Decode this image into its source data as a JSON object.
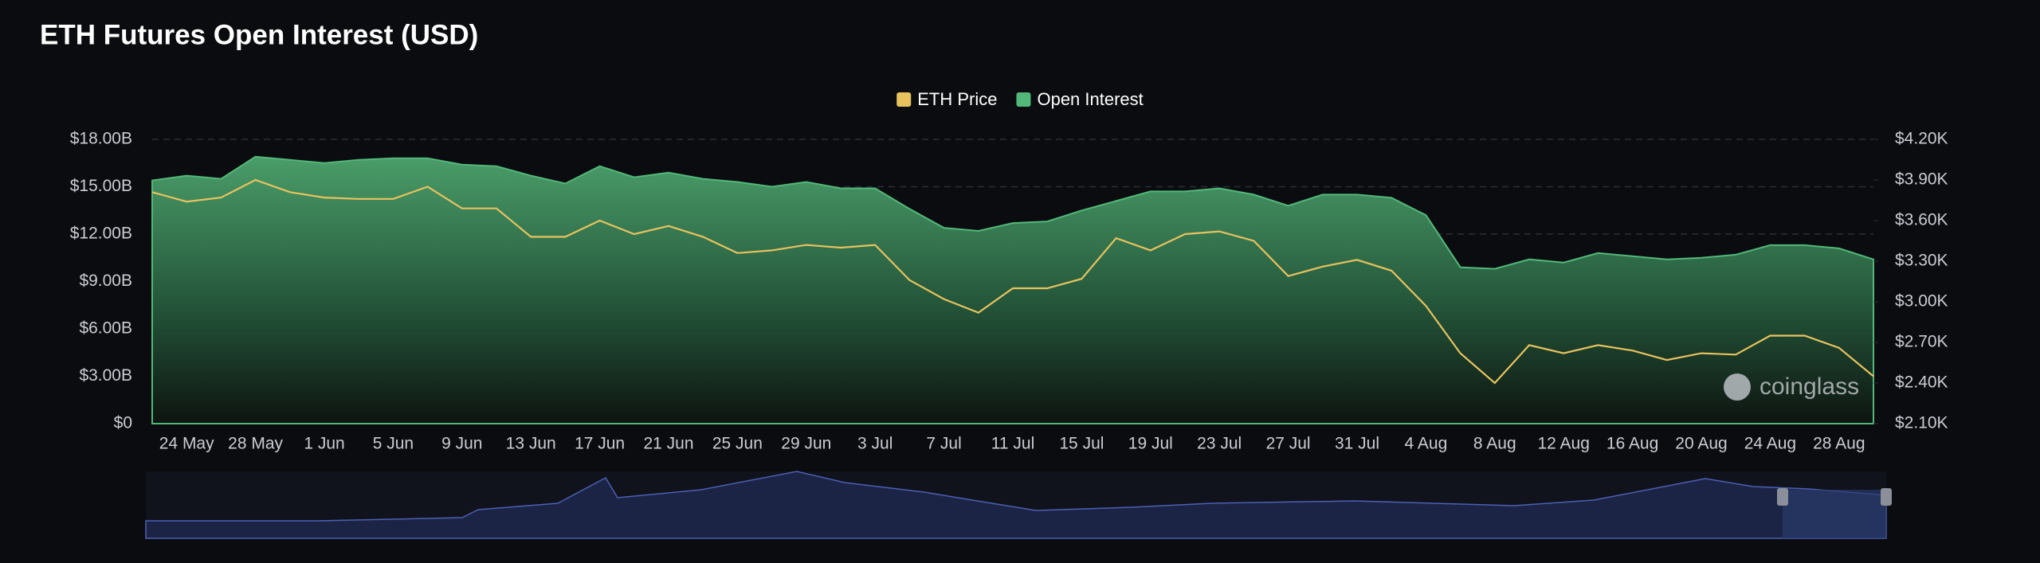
{
  "chart_data": {
    "type": "area-line",
    "title": "ETH Futures Open Interest (USD)",
    "watermark": "coinglass",
    "categories": [
      null,
      "24 May",
      null,
      "28 May",
      null,
      "1 Jun",
      null,
      "5 Jun",
      null,
      "9 Jun",
      null,
      "13 Jun",
      null,
      "17 Jun",
      null,
      "21 Jun",
      null,
      "25 Jun",
      null,
      "29 Jun",
      null,
      "3 Jul",
      null,
      "7 Jul",
      null,
      "11 Jul",
      null,
      "15 Jul",
      null,
      "19 Jul",
      null,
      "23 Jul",
      null,
      "27 Jul",
      null,
      "31 Jul",
      null,
      "4 Aug",
      null,
      "8 Aug",
      null,
      "12 Aug",
      null,
      "16 Aug",
      null,
      "20 Aug",
      null,
      "24 Aug",
      null,
      "28 Aug",
      null
    ],
    "series": [
      {
        "name": "ETH Price",
        "color": "#e6c25f",
        "axis": "y2",
        "values": [
          3810,
          3740,
          3770,
          3900,
          3810,
          3770,
          3760,
          3760,
          3850,
          3690,
          3690,
          3480,
          3480,
          3600,
          3500,
          3560,
          3480,
          3360,
          3380,
          3420,
          3400,
          3420,
          3160,
          3020,
          2920,
          3100,
          3100,
          3170,
          3470,
          3380,
          3500,
          3520,
          3450,
          3190,
          3260,
          3310,
          3230,
          2970,
          2620,
          2400,
          2680,
          2620,
          2680,
          2640,
          2570,
          2620,
          2610,
          2750,
          2750,
          2660,
          2450
        ]
      },
      {
        "name": "Open Interest",
        "color": "#52b87a",
        "axis": "y",
        "values": [
          15.4,
          15.7,
          15.5,
          16.9,
          16.7,
          16.5,
          16.7,
          16.8,
          16.8,
          16.4,
          16.3,
          15.7,
          15.2,
          16.3,
          15.6,
          15.9,
          15.5,
          15.3,
          15.0,
          15.3,
          14.9,
          14.9,
          13.6,
          12.4,
          12.2,
          12.7,
          12.8,
          13.5,
          14.1,
          14.7,
          14.7,
          14.9,
          14.5,
          13.8,
          14.5,
          14.5,
          14.3,
          13.2,
          9.9,
          9.8,
          10.4,
          10.2,
          10.8,
          10.6,
          10.4,
          10.5,
          10.7,
          11.3,
          11.3,
          11.1,
          10.4
        ]
      }
    ],
    "ylim": [
      0,
      18
    ],
    "yticks": [
      {
        "value": 0,
        "label": "$0"
      },
      {
        "value": 3,
        "label": "$3.00B"
      },
      {
        "value": 6,
        "label": "$6.00B"
      },
      {
        "value": 9,
        "label": "$9.00B"
      },
      {
        "value": 12,
        "label": "$12.00B"
      },
      {
        "value": 15,
        "label": "$15.00B"
      },
      {
        "value": 18,
        "label": "$18.00B"
      }
    ],
    "y2lim": [
      2100,
      4200
    ],
    "y2ticks": [
      {
        "value": 2100,
        "label": "$2.10K"
      },
      {
        "value": 2400,
        "label": "$2.40K"
      },
      {
        "value": 2700,
        "label": "$2.70K"
      },
      {
        "value": 3000,
        "label": "$3.00K"
      },
      {
        "value": 3300,
        "label": "$3.30K"
      },
      {
        "value": 3600,
        "label": "$3.60K"
      },
      {
        "value": 3900,
        "label": "$3.90K"
      },
      {
        "value": 4200,
        "label": "$4.20K"
      }
    ],
    "grid": true,
    "legend": "top"
  }
}
